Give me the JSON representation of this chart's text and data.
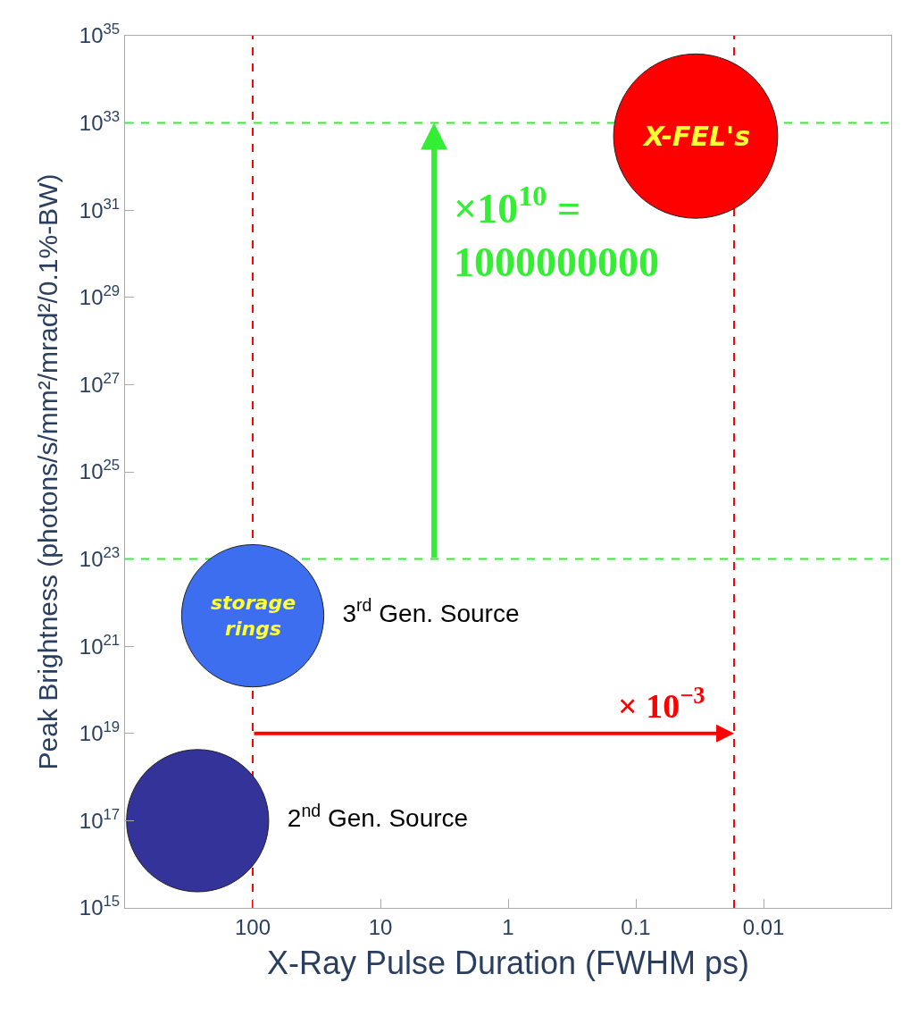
{
  "chart_data": {
    "type": "bubble",
    "xlabel": "X-Ray Pulse Duration (FWHM ps)",
    "ylabel": "Peak Brightness (photons/s/mm²/mrad²/0.1%-BW)",
    "series": [
      {
        "name": "2$^{nd}$ Gen. Source",
        "color": "#333399",
        "x": [
          270
        ],
        "values": [
          1e+17
        ],
        "sizes": [
          0.75
        ]
      },
      {
        "name": "3$^{rd}$ Gen. Source",
        "color": "#3d6ef0",
        "x": [
          100
        ],
        "values": [
          5e+21
        ],
        "sizes": [
          0.75
        ]
      },
      {
        "color": "#ff0000",
        "x": [
          0.034
        ],
        "values": [
          5e+32
        ],
        "sizes": [
          1
        ]
      }
    ],
    "log": "xy",
    "xlim": [
      1000,
      0.001
    ],
    "ylim": [
      1000000000000000.0,
      1e+35
    ],
    "xticks": [
      100,
      10,
      1,
      0.1,
      0.01
    ],
    "yticks": [
      {
        "value": 1000000000000000.0,
        "label": "10$^{15}$"
      },
      {
        "value": 1e+17,
        "label": "10$^{17}$"
      },
      {
        "value": 1e+19,
        "label": "10$^{19}$"
      },
      {
        "value": 1e+21,
        "label": "10$^{21}$"
      },
      {
        "value": 1e+23,
        "label": "10$^{23}$"
      },
      {
        "value": 1e+25,
        "label": "10$^{25}$"
      },
      {
        "value": 1e+27,
        "label": "10$^{27}$"
      },
      {
        "value": 1e+29,
        "label": "10$^{29}$"
      },
      {
        "value": 1e+31,
        "label": "10$^{31}$"
      },
      {
        "value": 1e+33,
        "label": "10$^{33}$"
      },
      {
        "value": 1e+35,
        "label": "10$^{35}$"
      }
    ],
    "ref_lines": [
      {
        "axis": "y",
        "value": 1e+23,
        "color": "#33ee33",
        "line_style": "dashed"
      },
      {
        "axis": "y",
        "value": 1e+33,
        "color": "#33ee33",
        "line_style": "dashed"
      },
      {
        "axis": "x",
        "value": 100,
        "color": "#ff0000",
        "line_style": "dashed"
      },
      {
        "axis": "x",
        "value": 0.017,
        "color": "#ff0000",
        "line_style": "dashed"
      }
    ],
    "annotations": [
      {
        "text": "×10$^{10}$ =\n1000000000",
        "x": 3.8,
        "y": 1e+33
      },
      {
        "text": "× 10$^{−3}$",
        "x": 0.017,
        "y": 1e+19
      },
      {
        "text": "storage\nrings",
        "x": 100,
        "y": 5e+21
      },
      {
        "text": "X-FEL's",
        "x": 0.034,
        "y": 5e+32
      }
    ],
    "grid": false
  }
}
